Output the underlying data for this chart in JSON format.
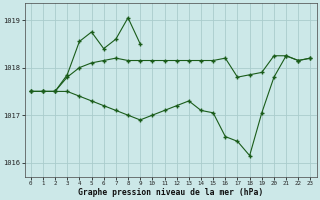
{
  "xlabel": "Graphe pression niveau de la mer (hPa)",
  "background_color": "#cce8e8",
  "grid_color": "#aacccc",
  "line_color": "#1a5c1a",
  "ylim": [
    1015.7,
    1019.35
  ],
  "yticks": [
    1016,
    1017,
    1018,
    1019
  ],
  "hours": [
    0,
    1,
    2,
    3,
    4,
    5,
    6,
    7,
    8,
    9,
    10,
    11,
    12,
    13,
    14,
    15,
    16,
    17,
    18,
    19,
    20,
    21,
    22,
    23
  ],
  "series_spiky_x": [
    0,
    1,
    2,
    3,
    4,
    5,
    6,
    7,
    8,
    9
  ],
  "series_spiky_y": [
    1017.5,
    1017.5,
    1017.5,
    1017.85,
    1018.55,
    1018.75,
    1018.4,
    1018.6,
    1019.05,
    1018.5
  ],
  "series_mid_x": [
    0,
    1,
    2,
    3,
    4,
    5,
    6,
    7,
    8,
    9,
    10,
    11,
    12,
    13,
    14,
    15,
    16,
    17,
    18,
    19,
    20,
    21,
    22,
    23
  ],
  "series_mid_y": [
    1017.5,
    1017.5,
    1017.5,
    1017.8,
    1018.0,
    1018.1,
    1018.15,
    1018.2,
    1018.15,
    1018.15,
    1018.15,
    1018.15,
    1018.15,
    1018.15,
    1018.15,
    1018.15,
    1018.2,
    1017.8,
    1017.85,
    1017.9,
    1018.25,
    1018.25,
    1018.15,
    1018.2
  ],
  "series_low_x": [
    0,
    1,
    2,
    3,
    4,
    5,
    6,
    7,
    8,
    9,
    10,
    11,
    12,
    13,
    14,
    15,
    16,
    17,
    18,
    19,
    20,
    21,
    22,
    23
  ],
  "series_low_y": [
    1017.5,
    1017.5,
    1017.5,
    1017.5,
    1017.4,
    1017.3,
    1017.2,
    1017.1,
    1017.0,
    1016.9,
    1017.0,
    1017.1,
    1017.2,
    1017.3,
    1017.1,
    1017.05,
    1016.55,
    1016.45,
    1016.15,
    1017.05,
    1017.8,
    1018.25,
    1018.15,
    1018.2
  ]
}
